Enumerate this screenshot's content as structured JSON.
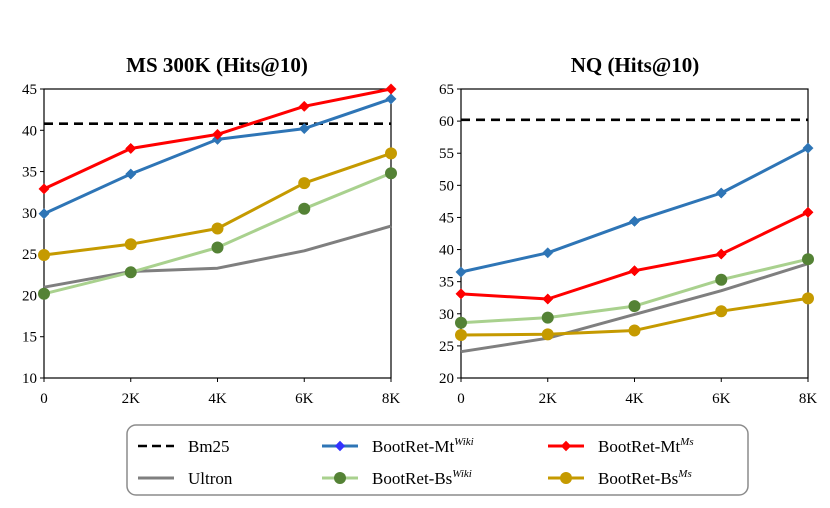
{
  "chart_data": [
    {
      "type": "line",
      "title": "MS 300K (Hits@10)",
      "categories": [
        "0",
        "2K",
        "4K",
        "6K",
        "8K"
      ],
      "ylim": [
        10,
        45
      ],
      "yticks": [
        "10",
        "15",
        "20",
        "25",
        "30",
        "35",
        "40",
        "45"
      ],
      "series": [
        {
          "key": "bm25",
          "values": [
            40.8,
            40.8,
            40.8,
            40.8,
            40.8
          ]
        },
        {
          "key": "ultron",
          "values": [
            21.0,
            22.9,
            23.3,
            25.4,
            28.4
          ]
        },
        {
          "key": "mt_wiki",
          "values": [
            29.9,
            34.7,
            38.9,
            40.2,
            43.8
          ]
        },
        {
          "key": "bs_wiki",
          "values": [
            20.2,
            22.8,
            25.8,
            30.5,
            34.8
          ]
        },
        {
          "key": "mt_ms",
          "values": [
            32.9,
            37.8,
            39.5,
            42.9,
            45.0
          ]
        },
        {
          "key": "bs_ms",
          "values": [
            24.9,
            26.2,
            28.1,
            33.6,
            37.2
          ]
        }
      ]
    },
    {
      "type": "line",
      "title": "NQ (Hits@10)",
      "categories": [
        "0",
        "2K",
        "4K",
        "6K",
        "8K"
      ],
      "ylim": [
        20,
        65
      ],
      "yticks": [
        "20",
        "25",
        "30",
        "35",
        "40",
        "45",
        "50",
        "55",
        "60",
        "65"
      ],
      "series": [
        {
          "key": "bm25",
          "values": [
            60.2,
            60.2,
            60.2,
            60.2,
            60.2
          ]
        },
        {
          "key": "ultron",
          "values": [
            24.1,
            26.2,
            29.9,
            33.6,
            37.8
          ]
        },
        {
          "key": "mt_wiki",
          "values": [
            36.5,
            39.5,
            44.4,
            48.8,
            55.8
          ]
        },
        {
          "key": "bs_wiki",
          "values": [
            28.6,
            29.4,
            31.2,
            35.3,
            38.5
          ]
        },
        {
          "key": "mt_ms",
          "values": [
            33.1,
            32.3,
            36.7,
            39.3,
            45.8
          ]
        },
        {
          "key": "bs_ms",
          "values": [
            26.7,
            26.8,
            27.4,
            30.4,
            32.4
          ]
        }
      ]
    }
  ],
  "legend": [
    {
      "key": "bm25",
      "label": "Bm25",
      "sup": "",
      "color": "#000000",
      "dash": true,
      "marker": "none"
    },
    {
      "key": "mt_wiki",
      "label": "BootRet-Mt",
      "sup": "Wiki",
      "color": "#2E75B6",
      "dash": false,
      "marker": "diamond"
    },
    {
      "key": "mt_ms",
      "label": "BootRet-Mt",
      "sup": "Ms",
      "color": "#FF0000",
      "dash": false,
      "marker": "diamond"
    },
    {
      "key": "ultron",
      "label": "Ultron",
      "sup": "",
      "color": "#7F7F7F",
      "dash": false,
      "marker": "none"
    },
    {
      "key": "bs_wiki",
      "label": "BootRet-Bs",
      "sup": "Wiki",
      "color": "#A9D18E",
      "dash": false,
      "marker": "circle",
      "marker_color": "#548235"
    },
    {
      "key": "bs_ms",
      "label": "BootRet-Bs",
      "sup": "Ms",
      "color": "#C59A00",
      "dash": false,
      "marker": "circle"
    }
  ],
  "legend_marker_color_mt_wiki": "#3333FF"
}
